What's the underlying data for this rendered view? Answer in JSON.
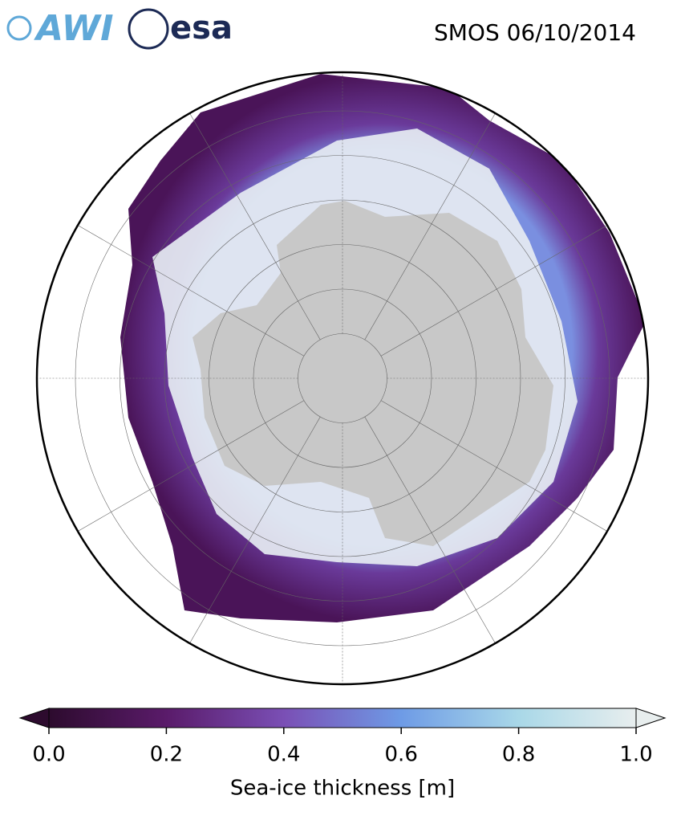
{
  "header": {
    "logos": [
      "AWI",
      "esa"
    ],
    "title": "SMOS 06/10/2014"
  },
  "colorbar": {
    "label": "Sea-ice thickness [m]",
    "lim": [
      0,
      1
    ],
    "ticks": [
      {
        "value": 0,
        "label": "0.0"
      },
      {
        "value": 0.2,
        "label": "0.2"
      },
      {
        "value": 0.4,
        "label": "0.4"
      },
      {
        "value": 0.6,
        "label": "0.6"
      },
      {
        "value": 0.8,
        "label": "0.8"
      },
      {
        "value": 1,
        "label": "1.0"
      }
    ],
    "colors": [
      "#2d0b2e",
      "#5a1b6a",
      "#7a4fb5",
      "#6e9be6",
      "#a9d8e8",
      "#e8eeee"
    ]
  }
}
